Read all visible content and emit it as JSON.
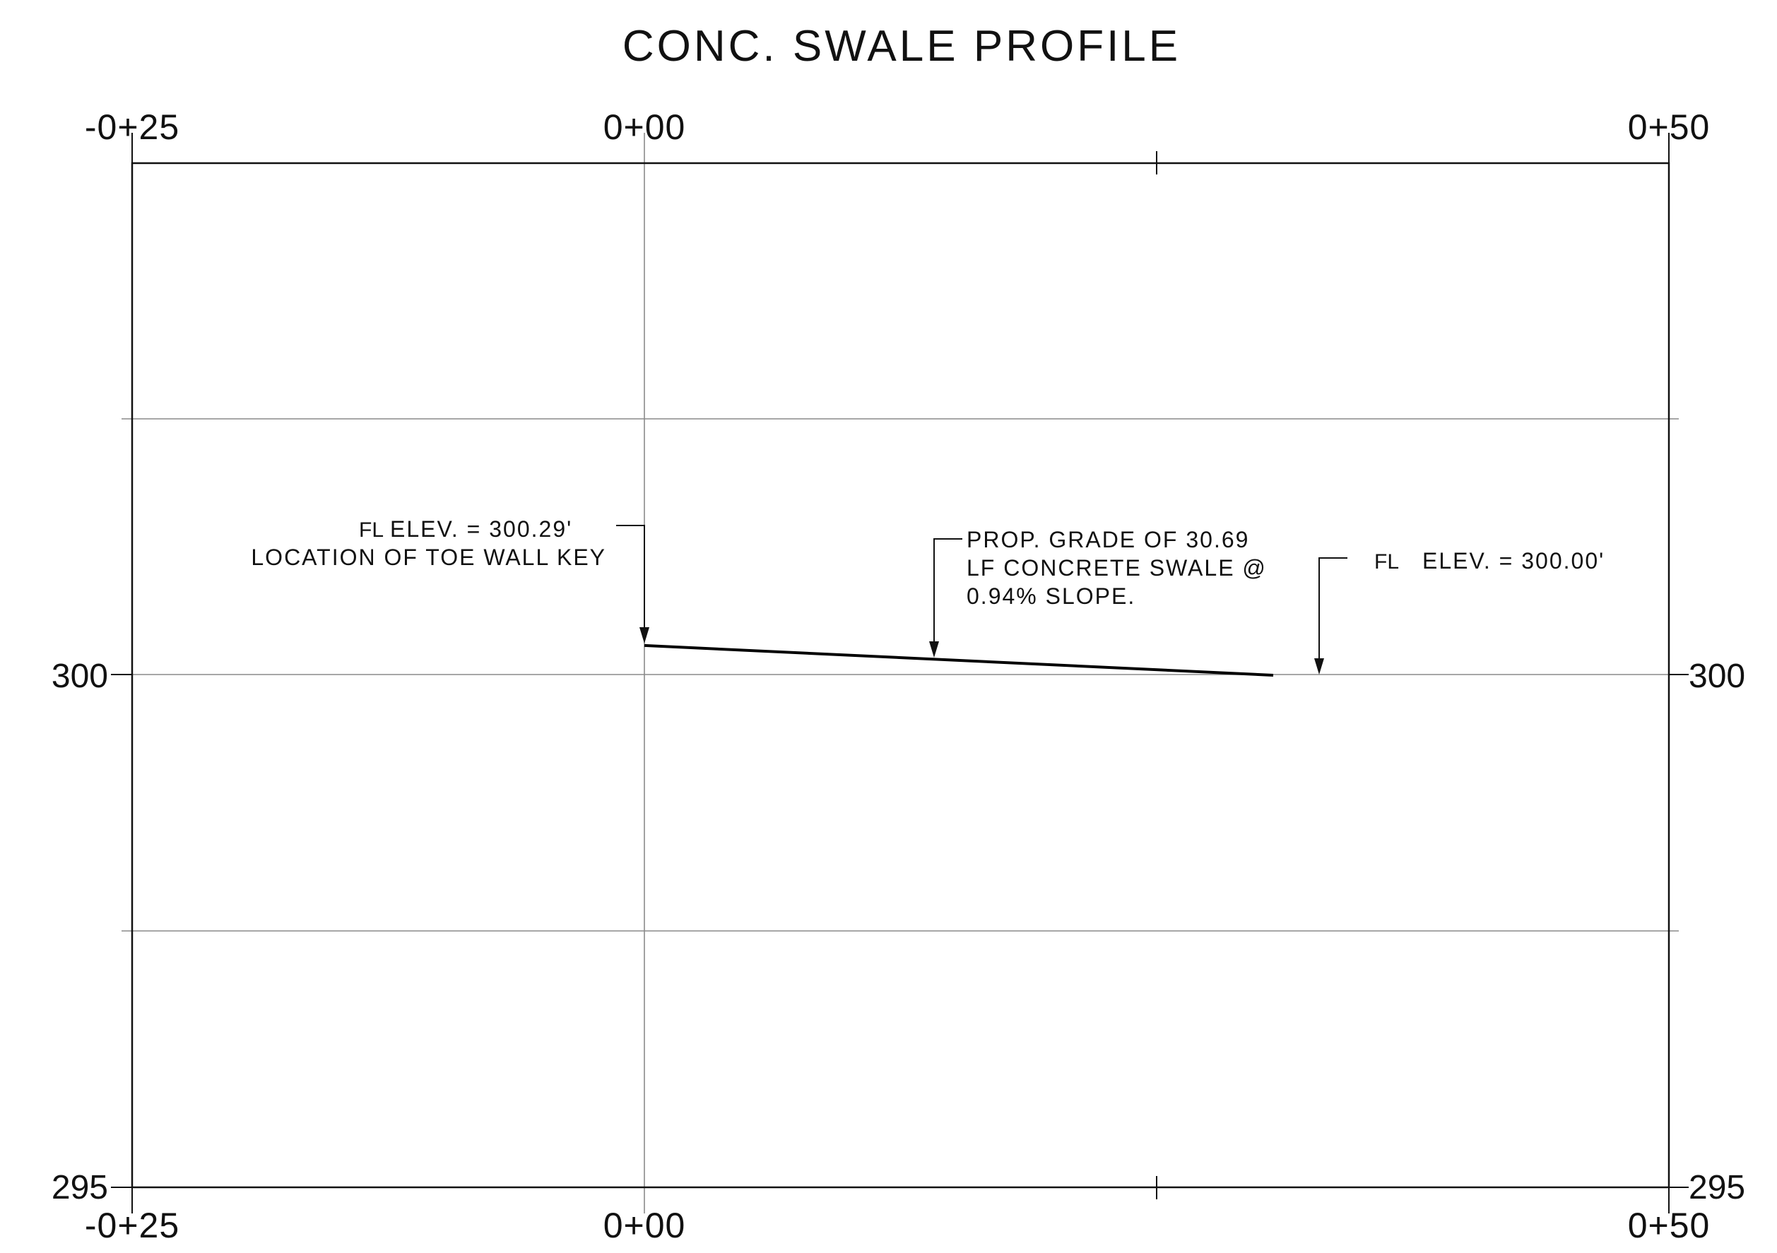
{
  "title": "CONC. SWALE PROFILE",
  "stations": {
    "left": "-0+25",
    "zero": "0+00",
    "right": "0+50"
  },
  "elevations": {
    "upper": "300",
    "lower": "295"
  },
  "annotations": {
    "start_fl_symbol": "FL",
    "start_elev": "ELEV. = 300.29'",
    "start_location": "LOCATION OF TOE WALL KEY",
    "grade_line1": "PROP. GRADE OF 30.69",
    "grade_line2": "LF CONCRETE SWALE @",
    "grade_line3": "0.94% SLOPE.",
    "end_fl_symbol": "FL",
    "end_elev": "ELEV. = 300.00'"
  },
  "profile": {
    "start_station": 0.0,
    "start_elevation": 300.29,
    "end_station": 30.69,
    "end_elevation": 300.0,
    "slope_percent": 0.94,
    "x_range": [
      -25,
      50
    ],
    "y_range": [
      295,
      305
    ]
  }
}
